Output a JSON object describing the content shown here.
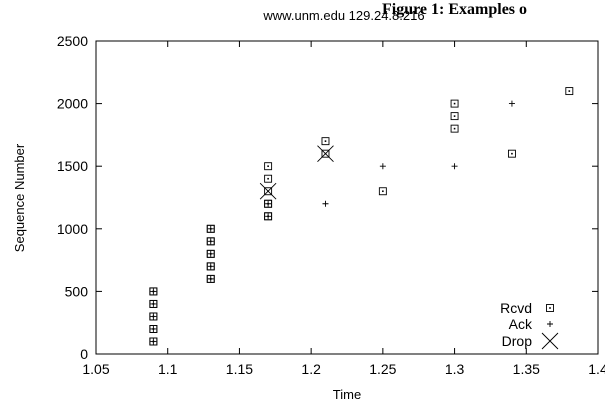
{
  "figure_caption": "Figure 1: Examples o",
  "chart_data": {
    "type": "scatter",
    "title": "www.unm.edu 129.24.8.216",
    "xlabel": "Time",
    "ylabel": "Sequence Number",
    "xlim": [
      1.05,
      1.4
    ],
    "ylim": [
      0,
      2500
    ],
    "xticks": [
      "1.05",
      "1.1",
      "1.15",
      "1.2",
      "1.25",
      "1.3",
      "1.35",
      "1.4"
    ],
    "yticks": [
      "0",
      "500",
      "1000",
      "1500",
      "2000",
      "2500"
    ],
    "grid": false,
    "legend_position": "bottom-right",
    "series": [
      {
        "name": "Rcvd",
        "marker": "square-dot",
        "points": [
          [
            1.09,
            100
          ],
          [
            1.09,
            200
          ],
          [
            1.09,
            300
          ],
          [
            1.09,
            400
          ],
          [
            1.09,
            500
          ],
          [
            1.09,
            100
          ],
          [
            1.09,
            200
          ],
          [
            1.09,
            300
          ],
          [
            1.09,
            400
          ],
          [
            1.09,
            500
          ],
          [
            1.13,
            600
          ],
          [
            1.13,
            700
          ],
          [
            1.13,
            800
          ],
          [
            1.13,
            900
          ],
          [
            1.13,
            1000
          ],
          [
            1.13,
            600
          ],
          [
            1.13,
            700
          ],
          [
            1.13,
            800
          ],
          [
            1.13,
            900
          ],
          [
            1.13,
            1000
          ],
          [
            1.17,
            1100
          ],
          [
            1.17,
            1200
          ],
          [
            1.17,
            1300
          ],
          [
            1.17,
            1400
          ],
          [
            1.17,
            1500
          ],
          [
            1.17,
            1100
          ],
          [
            1.17,
            1200
          ],
          [
            1.21,
            1600
          ],
          [
            1.21,
            1700
          ],
          [
            1.25,
            1300
          ],
          [
            1.3,
            1800
          ],
          [
            1.3,
            1900
          ],
          [
            1.3,
            2000
          ],
          [
            1.34,
            1600
          ],
          [
            1.38,
            2100
          ]
        ]
      },
      {
        "name": "Ack",
        "marker": "plus",
        "points": [
          [
            1.09,
            100
          ],
          [
            1.09,
            200
          ],
          [
            1.09,
            300
          ],
          [
            1.09,
            400
          ],
          [
            1.09,
            500
          ],
          [
            1.13,
            600
          ],
          [
            1.13,
            700
          ],
          [
            1.13,
            800
          ],
          [
            1.13,
            900
          ],
          [
            1.13,
            1000
          ],
          [
            1.17,
            1100
          ],
          [
            1.17,
            1200
          ],
          [
            1.21,
            1200
          ],
          [
            1.25,
            1500
          ],
          [
            1.3,
            1500
          ],
          [
            1.34,
            2000
          ]
        ]
      },
      {
        "name": "Drop",
        "marker": "x",
        "points": [
          [
            1.17,
            1300
          ],
          [
            1.21,
            1600
          ]
        ]
      }
    ]
  }
}
